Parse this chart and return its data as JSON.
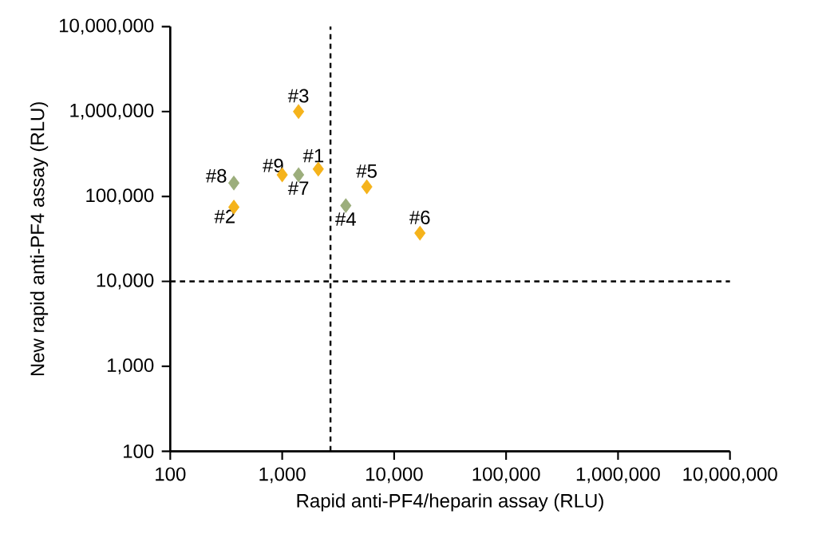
{
  "chart_data": {
    "type": "scatter",
    "xlabel": "Rapid anti-PF4/heparin assay (RLU)",
    "ylabel": "New rapid anti-PF4 assay (RLU)",
    "log": "xy",
    "marker": "diamond",
    "grid": false,
    "xlim": [
      100,
      10000000
    ],
    "ylim": [
      100,
      10000000
    ],
    "xticks": [
      {
        "value": 100,
        "label": "100"
      },
      {
        "value": 1000,
        "label": "1,000"
      },
      {
        "value": 10000,
        "label": "10,000"
      },
      {
        "value": 100000,
        "label": "100,000"
      },
      {
        "value": 1000000,
        "label": "1,000,000"
      },
      {
        "value": 10000000,
        "label": "10,000,000"
      }
    ],
    "yticks": [
      {
        "value": 100,
        "label": "100"
      },
      {
        "value": 1000,
        "label": "1,000"
      },
      {
        "value": 10000,
        "label": "10,000"
      },
      {
        "value": 100000,
        "label": "100,000"
      },
      {
        "value": 1000000,
        "label": "1,000,000"
      },
      {
        "value": 10000000,
        "label": "10,000,000"
      }
    ],
    "series": [
      {
        "color": "#f5b31b",
        "x": [
          2100,
          370,
          1400,
          5700,
          17000,
          1000
        ],
        "values": [
          210000,
          75000,
          1000000,
          130000,
          37000,
          180000
        ]
      },
      {
        "color": "#9cae7c",
        "x": [
          3700,
          1400,
          370
        ],
        "values": [
          78000,
          180000,
          144000
        ]
      }
    ],
    "ref_lines": [
      {
        "axis": "x",
        "value": 2700,
        "line_style": "dashed"
      },
      {
        "axis": "y",
        "value": 10000,
        "line_style": "dashed"
      }
    ],
    "annotations": [
      {
        "text": "#1",
        "x": 2100,
        "y": 210000
      },
      {
        "text": "#2",
        "x": 370,
        "y": 75000
      },
      {
        "text": "#3",
        "x": 1400,
        "y": 1000000
      },
      {
        "text": "#4",
        "x": 3700,
        "y": 78000
      },
      {
        "text": "#5",
        "x": 5700,
        "y": 130000
      },
      {
        "text": "#6",
        "x": 17000,
        "y": 37000
      },
      {
        "text": "#7",
        "x": 1400,
        "y": 180000
      },
      {
        "text": "#8",
        "x": 370,
        "y": 144000
      },
      {
        "text": "#9",
        "x": 1000,
        "y": 180000
      }
    ]
  }
}
